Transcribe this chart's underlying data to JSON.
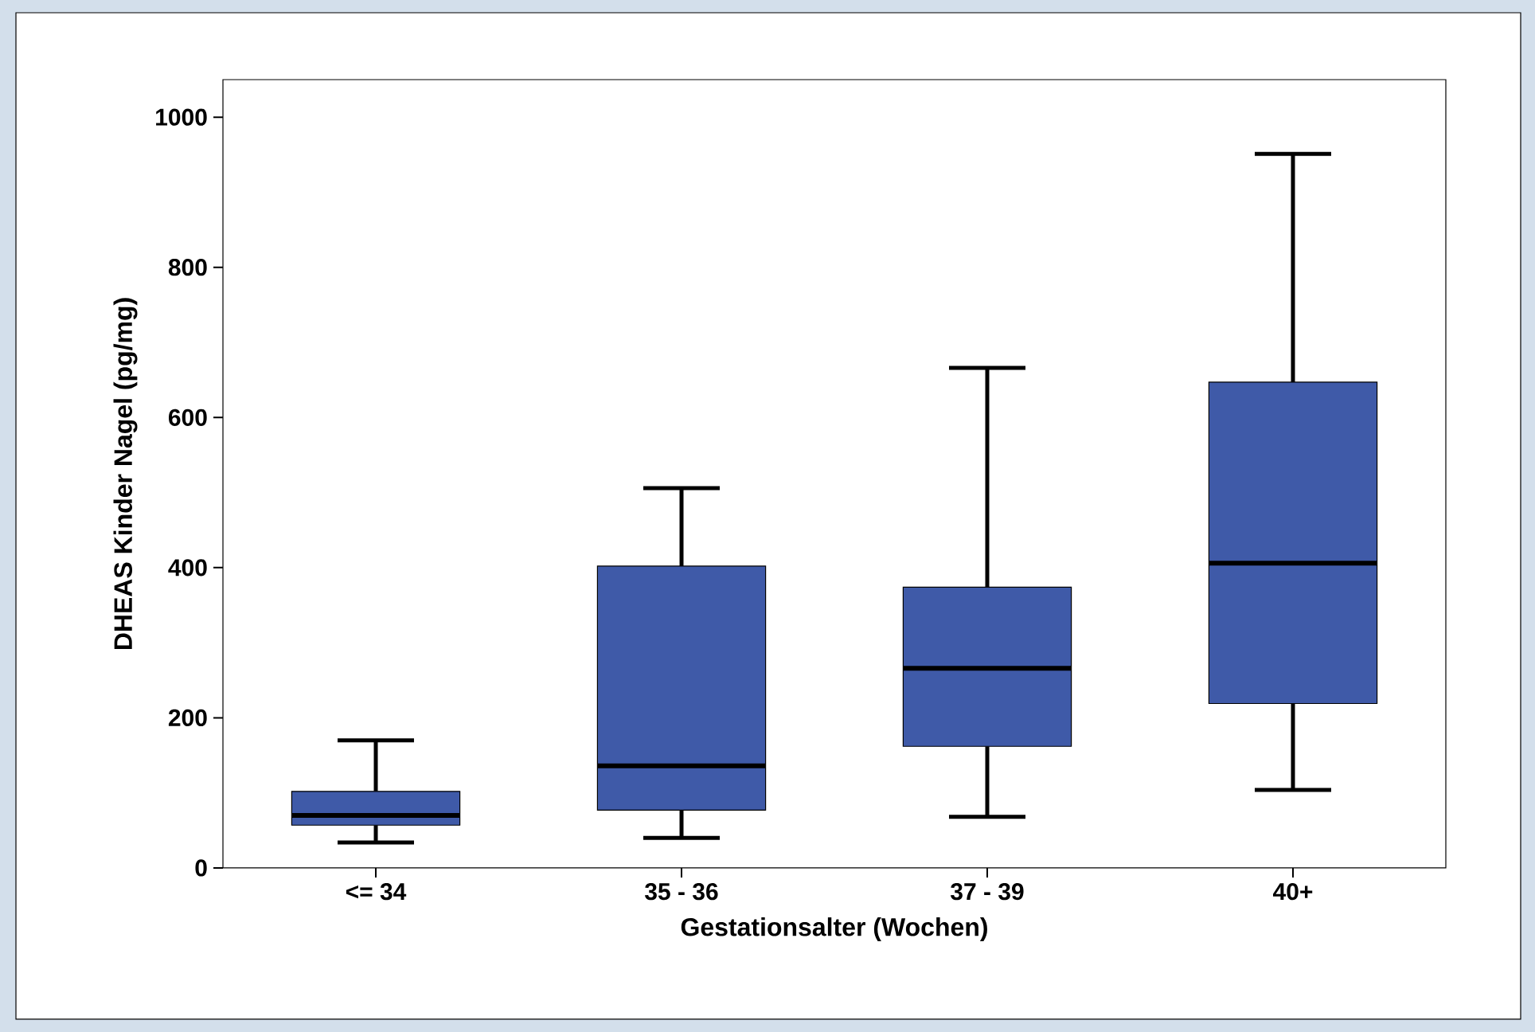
{
  "chart_data": {
    "type": "box",
    "xlabel": "Gestationsalter (Wochen)",
    "ylabel": "DHEAS Kinder Nagel (pg/mg)",
    "categories": [
      "<= 34",
      "35 - 36",
      "37 - 39",
      "40+"
    ],
    "color": "#3f5aa8",
    "boxes": [
      {
        "low": 34,
        "q1": 57,
        "median": 70,
        "q3": 102,
        "high": 170
      },
      {
        "low": 40,
        "q1": 77,
        "median": 136,
        "q3": 402,
        "high": 506
      },
      {
        "low": 68,
        "q1": 162,
        "median": 266,
        "q3": 374,
        "high": 666
      },
      {
        "low": 104,
        "q1": 219,
        "median": 406,
        "q3": 647,
        "high": 951
      }
    ],
    "ylim": [
      0,
      1050
    ],
    "yticks": [
      0,
      200,
      400,
      600,
      800,
      1000
    ]
  }
}
